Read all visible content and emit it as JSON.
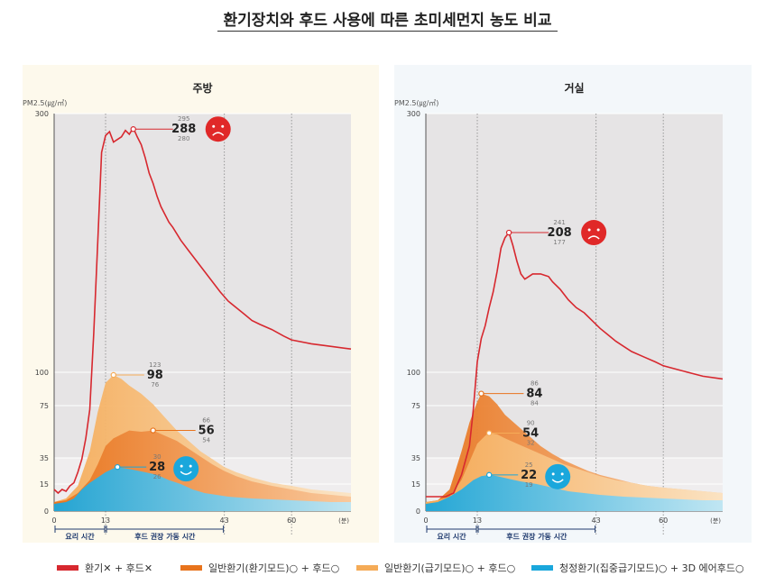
{
  "page": {
    "title": "환기장치와 후드 사용에 따른 초미세먼지 농도 비교"
  },
  "colors": {
    "none": "#d7282f",
    "general_hood": "#e8731c",
    "general_quick": "#f5ab57",
    "clean_3d": "#1aa7dc"
  },
  "icons": {
    "bad": "sad-face-icon",
    "good": "smiley-face-icon"
  },
  "legend": [
    {
      "key": "none",
      "label": "환기✕ + 후드✕"
    },
    {
      "key": "general_hood",
      "label": "일반환기(환기모드)○ + 후드○"
    },
    {
      "key": "general_quick",
      "label": "일반환기(급기모드)○ + 후드○"
    },
    {
      "key": "clean_3d",
      "label": "청정환기(집중급기모드)○ + 3D 에어후드○"
    }
  ],
  "chart_data": [
    {
      "type": "line",
      "title": "주방",
      "ylabel": "PM2.5(㎍/㎥)",
      "xunit": "(분)",
      "xlim": [
        0,
        75
      ],
      "ylim": [
        0,
        300
      ],
      "yticks": [
        0,
        15,
        35,
        75,
        100,
        300
      ],
      "xticks": [
        0,
        13,
        43,
        60
      ],
      "periods": [
        {
          "label": "요리 시간",
          "from": 0,
          "to": 13
        },
        {
          "label": "후드 권장 가동 시간",
          "from": 13,
          "to": 43
        }
      ],
      "series": [
        {
          "key": "none",
          "name": "환기✕ + 후드✕",
          "peak": {
            "x": 20,
            "value": 288,
            "max": 295,
            "min": 280
          },
          "points": [
            [
              0,
              12
            ],
            [
              1,
              10
            ],
            [
              2,
              12
            ],
            [
              3,
              11
            ],
            [
              4,
              14
            ],
            [
              5,
              16
            ],
            [
              6,
              24
            ],
            [
              7,
              34
            ],
            [
              8,
              50
            ],
            [
              9,
              72
            ],
            [
              10,
              130
            ],
            [
              11,
              200
            ],
            [
              12,
              270
            ],
            [
              13,
              283
            ],
            [
              14,
              286
            ],
            [
              15,
              278
            ],
            [
              16,
              280
            ],
            [
              17,
              282
            ],
            [
              18,
              287
            ],
            [
              19,
              284
            ],
            [
              20,
              289
            ],
            [
              21,
              282
            ],
            [
              22,
              276
            ],
            [
              23,
              266
            ],
            [
              24,
              254
            ],
            [
              25,
              246
            ],
            [
              26,
              236
            ],
            [
              27,
              228
            ],
            [
              28,
              222
            ],
            [
              29,
              216
            ],
            [
              30,
              212
            ],
            [
              32,
              202
            ],
            [
              34,
              194
            ],
            [
              36,
              186
            ],
            [
              38,
              178
            ],
            [
              40,
              170
            ],
            [
              42,
              162
            ],
            [
              44,
              155
            ],
            [
              46,
              150
            ],
            [
              48,
              145
            ],
            [
              50,
              140
            ],
            [
              52,
              137
            ],
            [
              55,
              133
            ],
            [
              58,
              128
            ],
            [
              60,
              125
            ],
            [
              65,
              122
            ],
            [
              70,
              120
            ],
            [
              75,
              118
            ]
          ]
        },
        {
          "key": "general_quick",
          "name": "일반환기(급기모드)○ + 후드○",
          "peak": {
            "x": 15,
            "value": 98,
            "max": 123,
            "min": 76
          },
          "points": [
            [
              0,
              5
            ],
            [
              3,
              7
            ],
            [
              6,
              14
            ],
            [
              9,
              40
            ],
            [
              11,
              70
            ],
            [
              13,
              92
            ],
            [
              15,
              98
            ],
            [
              17,
              95
            ],
            [
              19,
              90
            ],
            [
              22,
              84
            ],
            [
              25,
              76
            ],
            [
              28,
              66
            ],
            [
              31,
              56
            ],
            [
              34,
              48
            ],
            [
              37,
              40
            ],
            [
              40,
              34
            ],
            [
              43,
              28
            ],
            [
              46,
              24
            ],
            [
              50,
              20
            ],
            [
              55,
              16
            ],
            [
              60,
              14
            ],
            [
              65,
              12
            ],
            [
              70,
              11
            ],
            [
              75,
              10
            ]
          ]
        },
        {
          "key": "general_hood",
          "name": "일반환기(환기모드)○ + 후드○",
          "peak": {
            "x": 25,
            "value": 56,
            "max": 66,
            "min": 54
          },
          "points": [
            [
              0,
              5
            ],
            [
              3,
              6
            ],
            [
              6,
              10
            ],
            [
              9,
              18
            ],
            [
              11,
              30
            ],
            [
              13,
              44
            ],
            [
              15,
              50
            ],
            [
              17,
              53
            ],
            [
              19,
              56
            ],
            [
              22,
              55
            ],
            [
              25,
              56
            ],
            [
              28,
              52
            ],
            [
              31,
              48
            ],
            [
              34,
              42
            ],
            [
              37,
              36
            ],
            [
              40,
              30
            ],
            [
              43,
              25
            ],
            [
              46,
              21
            ],
            [
              50,
              17
            ],
            [
              55,
              14
            ],
            [
              60,
              12
            ],
            [
              65,
              10
            ],
            [
              70,
              9
            ],
            [
              75,
              8
            ]
          ]
        },
        {
          "key": "clean_3d",
          "name": "청정환기(집중급기모드)○ + 3D 에어후드○",
          "peak": {
            "x": 16,
            "value": 28,
            "max": 30,
            "min": 26
          },
          "points": [
            [
              0,
              4
            ],
            [
              3,
              5
            ],
            [
              5,
              7
            ],
            [
              7,
              12
            ],
            [
              9,
              16
            ],
            [
              11,
              20
            ],
            [
              13,
              24
            ],
            [
              15,
              27
            ],
            [
              16,
              28
            ],
            [
              18,
              27
            ],
            [
              20,
              26
            ],
            [
              23,
              24
            ],
            [
              26,
              22
            ],
            [
              29,
              18
            ],
            [
              32,
              15
            ],
            [
              35,
              12
            ],
            [
              38,
              10
            ],
            [
              41,
              9
            ],
            [
              44,
              8
            ],
            [
              50,
              7
            ],
            [
              60,
              6
            ],
            [
              70,
              5
            ],
            [
              75,
              5
            ]
          ]
        }
      ]
    },
    {
      "type": "line",
      "title": "거실",
      "ylabel": "PM2.5(㎍/㎥)",
      "xunit": "(분)",
      "xlim": [
        0,
        75
      ],
      "ylim": [
        0,
        300
      ],
      "yticks": [
        0,
        15,
        35,
        75,
        100,
        300
      ],
      "xticks": [
        0,
        13,
        43,
        60
      ],
      "periods": [
        {
          "label": "요리 시간",
          "from": 0,
          "to": 13
        },
        {
          "label": "후드 권장 가동 시간",
          "from": 13,
          "to": 43
        }
      ],
      "series": [
        {
          "key": "none",
          "name": "환기✕ + 후드✕",
          "peak": {
            "x": 21,
            "value": 208,
            "max": 241,
            "min": 177
          },
          "points": [
            [
              0,
              8
            ],
            [
              3,
              8
            ],
            [
              5,
              8
            ],
            [
              7,
              10
            ],
            [
              9,
              22
            ],
            [
              11,
              44
            ],
            [
              12,
              72
            ],
            [
              13,
              108
            ],
            [
              14,
              126
            ],
            [
              15,
              136
            ],
            [
              16,
              150
            ],
            [
              17,
              162
            ],
            [
              18,
              178
            ],
            [
              19,
              196
            ],
            [
              20,
              204
            ],
            [
              21,
              208
            ],
            [
              22,
              198
            ],
            [
              23,
              186
            ],
            [
              24,
              176
            ],
            [
              25,
              172
            ],
            [
              26,
              174
            ],
            [
              27,
              176
            ],
            [
              29,
              176
            ],
            [
              30,
              175
            ],
            [
              31,
              174
            ],
            [
              32,
              170
            ],
            [
              34,
              164
            ],
            [
              36,
              156
            ],
            [
              38,
              150
            ],
            [
              40,
              146
            ],
            [
              42,
              140
            ],
            [
              44,
              134
            ],
            [
              46,
              129
            ],
            [
              48,
              124
            ],
            [
              50,
              120
            ],
            [
              52,
              116
            ],
            [
              55,
              112
            ],
            [
              58,
              108
            ],
            [
              60,
              105
            ],
            [
              65,
              101
            ],
            [
              70,
              97
            ],
            [
              75,
              95
            ]
          ]
        },
        {
          "key": "general_hood",
          "name": "일반환기(환기모드)○ + 후드○",
          "peak": {
            "x": 14,
            "value": 84,
            "max": 86,
            "min": 84
          },
          "points": [
            [
              0,
              5
            ],
            [
              3,
              6
            ],
            [
              6,
              12
            ],
            [
              9,
              40
            ],
            [
              11,
              62
            ],
            [
              13,
              78
            ],
            [
              14,
              84
            ],
            [
              16,
              82
            ],
            [
              18,
              76
            ],
            [
              20,
              68
            ],
            [
              23,
              60
            ],
            [
              26,
              52
            ],
            [
              29,
              44
            ],
            [
              32,
              38
            ],
            [
              35,
              33
            ],
            [
              38,
              29
            ],
            [
              41,
              25
            ],
            [
              44,
              22
            ],
            [
              48,
              19
            ],
            [
              52,
              16
            ],
            [
              56,
              14
            ],
            [
              60,
              13
            ],
            [
              65,
              12
            ],
            [
              70,
              11
            ],
            [
              75,
              10
            ]
          ]
        },
        {
          "key": "general_quick",
          "name": "일반환기(급기모드)○ + 후드○",
          "peak": {
            "x": 16,
            "value": 54,
            "max": 90,
            "min": 32
          },
          "points": [
            [
              0,
              5
            ],
            [
              3,
              6
            ],
            [
              6,
              8
            ],
            [
              9,
              18
            ],
            [
              11,
              32
            ],
            [
              13,
              46
            ],
            [
              15,
              52
            ],
            [
              16,
              54
            ],
            [
              18,
              53
            ],
            [
              20,
              50
            ],
            [
              23,
              46
            ],
            [
              26,
              42
            ],
            [
              29,
              38
            ],
            [
              32,
              34
            ],
            [
              35,
              30
            ],
            [
              38,
              27
            ],
            [
              41,
              24
            ],
            [
              44,
              21
            ],
            [
              48,
              18
            ],
            [
              52,
              16
            ],
            [
              56,
              14
            ],
            [
              60,
              13
            ],
            [
              65,
              12
            ],
            [
              70,
              11
            ],
            [
              75,
              10
            ]
          ]
        },
        {
          "key": "clean_3d",
          "name": "청정환기(집중급기모드)○ + 3D 에어후드○",
          "peak": {
            "x": 16,
            "value": 22,
            "max": 25,
            "min": 19
          },
          "points": [
            [
              0,
              4
            ],
            [
              3,
              5
            ],
            [
              6,
              8
            ],
            [
              9,
              12
            ],
            [
              12,
              18
            ],
            [
              14,
              21
            ],
            [
              16,
              22
            ],
            [
              18,
              21
            ],
            [
              21,
              19
            ],
            [
              24,
              17
            ],
            [
              28,
              15
            ],
            [
              32,
              13
            ],
            [
              36,
              11
            ],
            [
              40,
              10
            ],
            [
              44,
              9
            ],
            [
              50,
              8
            ],
            [
              60,
              7
            ],
            [
              70,
              6
            ],
            [
              75,
              6
            ]
          ]
        }
      ]
    }
  ]
}
